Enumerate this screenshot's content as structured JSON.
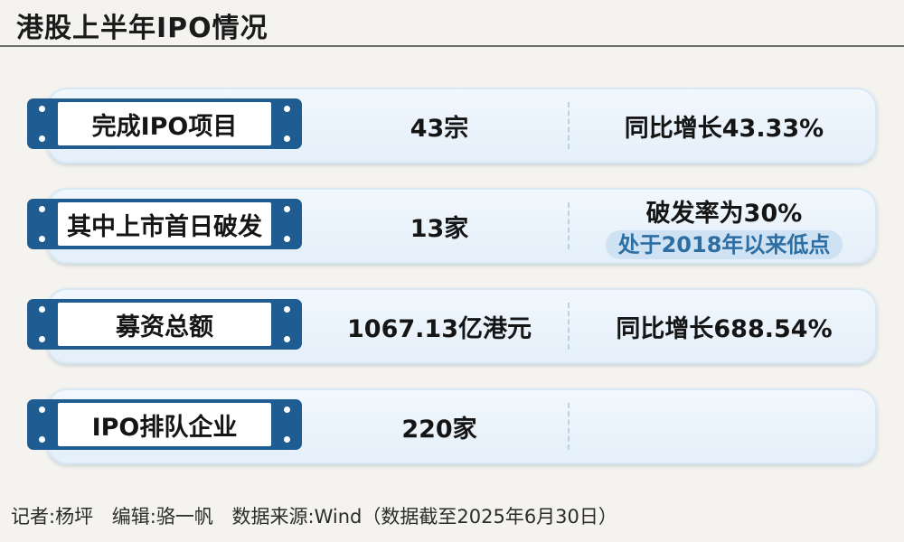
{
  "title": "港股上半年IPO情况",
  "rows": [
    {
      "label": "完成IPO项目",
      "value": "43宗",
      "note": "同比增长43.33%",
      "sub_note": ""
    },
    {
      "label": "其中上市首日破发",
      "value": "13家",
      "note": "破发率为30%",
      "sub_note": "处于2018年以来低点"
    },
    {
      "label": "募资总额",
      "value": "1067.13亿港元",
      "note": "同比增长688.54%",
      "sub_note": ""
    },
    {
      "label": "IPO排队企业",
      "value": "220家",
      "note": "",
      "sub_note": ""
    }
  ],
  "footer": {
    "reporter": "记者:杨坪",
    "editor": "编辑:骆一帆",
    "source": "数据来源:Wind（数据截至2025年6月30日）"
  },
  "colors": {
    "label_bar": "#1f5c91",
    "card_bg": "#e8f2fb",
    "highlight_pill": "#cfe2f3",
    "highlight_text": "#2d6ea3"
  }
}
